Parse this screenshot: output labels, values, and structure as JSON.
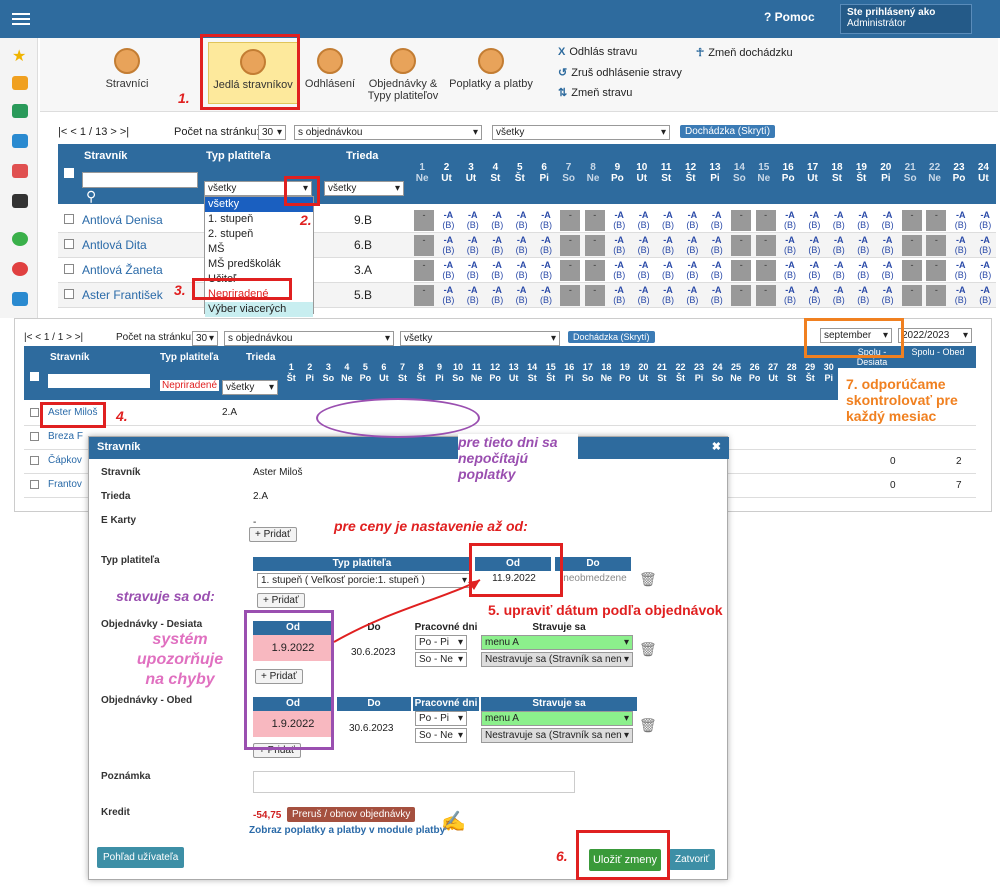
{
  "topbar": {
    "help": "Pomoc",
    "logged_as": "Ste prihlásený ako",
    "user": "Administrátor"
  },
  "toolbar": {
    "tabs": [
      "Stravníci",
      "Jedlá stravníkov",
      "Odhlásení",
      "Objednávky & Typy platiteľov",
      "Poplatky a platby"
    ],
    "actions": [
      "Odhlás stravu",
      "Zruš odhlásenie stravy",
      "Zmeň stravu",
      "Zmeň dochádzku"
    ]
  },
  "grid1": {
    "pager": "|< < 1 / 13 > >|",
    "per_page_label": "Počet na stránku:",
    "per_page": "30",
    "filter1": "s objednávkou",
    "filter2": "všetky",
    "attendance_btn": "Dochádzka (Skrytí)",
    "headers": {
      "name": "Stravník",
      "payer": "Typ platiteľa",
      "class": "Trieda"
    },
    "payer_filter": "všetky",
    "class_filter": "všetky",
    "days": [
      [
        "1",
        "Ne"
      ],
      [
        "2",
        "Ut"
      ],
      [
        "3",
        "Ut"
      ],
      [
        "4",
        "St"
      ],
      [
        "5",
        "Št"
      ],
      [
        "6",
        "Pi"
      ],
      [
        "7",
        "So"
      ],
      [
        "8",
        "Ne"
      ],
      [
        "9",
        "Po"
      ],
      [
        "10",
        "Ut"
      ],
      [
        "11",
        "St"
      ],
      [
        "12",
        "Št"
      ],
      [
        "13",
        "Pi"
      ],
      [
        "14",
        "So"
      ],
      [
        "15",
        "Ne"
      ],
      [
        "16",
        "Po"
      ],
      [
        "17",
        "Ut"
      ],
      [
        "18",
        "St"
      ],
      [
        "19",
        "Št"
      ],
      [
        "20",
        "Pi"
      ],
      [
        "21",
        "So"
      ],
      [
        "22",
        "Ne"
      ],
      [
        "23",
        "Po"
      ],
      [
        "24",
        "Ut"
      ]
    ],
    "dropdown": [
      "všetky",
      "1. stupeň",
      "2. stupeň",
      "MŠ",
      "MŠ predškolák",
      "Učiteľ",
      "Nepriradené",
      "Výber viacerých"
    ],
    "rows": [
      {
        "name": "Antlová Denisa",
        "class": "9.B"
      },
      {
        "name": "Antlová Dita",
        "class": "6.B"
      },
      {
        "name": "Antlová Žaneta",
        "class": "3.A"
      },
      {
        "name": "Aster František",
        "class": "5.B"
      }
    ]
  },
  "grid2": {
    "pager": "|< < 1 / 1 > >|",
    "per_page_label": "Počet na stránku:",
    "per_page": "30",
    "filter1": "s objednávkou",
    "filter2": "všetky",
    "attendance_btn": "Dochádzka (Skrytí)",
    "month": "september",
    "year": "2022/2023",
    "headers": {
      "name": "Stravník",
      "payer": "Typ platiteľa",
      "class": "Trieda",
      "sum1": "Spolu - Desiata",
      "sum2": "Spolu - Obed"
    },
    "payer_filter": "Nepriradené",
    "class_filter": "všetky",
    "rows": [
      {
        "name": "Aster Miloš",
        "class": "2.A"
      },
      {
        "name": "Breza F"
      },
      {
        "name": "Čápkov"
      },
      {
        "name": "Frantov"
      }
    ],
    "sums": [
      [
        "0",
        "2"
      ],
      [
        "0",
        "7"
      ]
    ]
  },
  "annotations": {
    "a1": "1.",
    "a2": "2.",
    "a3": "3.",
    "a4": "4.",
    "a5": "5.   upraviť dátum podľa objednávok",
    "a6": "6.",
    "a7": "7.   odporúčame skontrolovať pre každý mesiac",
    "no_fees": "pre tieto dni sa nepočítajú poplatky",
    "prices_from": "pre ceny je nastavenie až od:",
    "eats_from": "stravuje sa od:",
    "system_warn": "systém upozorňuje na chyby"
  },
  "modal": {
    "title": "Stravník",
    "labels": {
      "name": "Stravník",
      "class": "Trieda",
      "cards": "E Karty",
      "payer": "Typ platiteľa",
      "snack": "Objednávky - Desiata",
      "lunch": "Objednávky - Obed",
      "note": "Poznámka",
      "credit": "Kredit"
    },
    "name": "Aster Miloš",
    "class": "2.A",
    "cards": "-",
    "add": "+ Pridať",
    "payer_table": {
      "col1": "Typ platiteľa",
      "col2": "Od",
      "col3": "Do",
      "value": "1. stupeň ( Veľkosť porcie:1. stupeň )",
      "from": "11.9.2022",
      "to": "neobmedzene"
    },
    "order_cols": [
      "Od",
      "Do",
      "Pracovné dni",
      "Stravuje sa"
    ],
    "snack": {
      "from": "1.9.2022",
      "to": "30.6.2023",
      "days1": "Po - Pi",
      "days2": "So - Ne",
      "menu1": "menu A",
      "menu2": "Nestravuje sa (Stravník sa nen"
    },
    "lunch": {
      "from": "1.9.2022",
      "to": "30.6.2023",
      "days1": "Po - Pi",
      "days2": "So - Ne",
      "menu1": "menu A",
      "menu2": "Nestravuje sa (Stravník sa nen"
    },
    "credit": "-54,75",
    "credit_btn": "Preruš / obnov objednávky",
    "fees_link": "Zobraz poplatky a platby v module platby",
    "view_btn": "Pohľad užívateľa",
    "save_btn": "Uložiť zmeny",
    "close_btn": "Zatvoriť"
  }
}
